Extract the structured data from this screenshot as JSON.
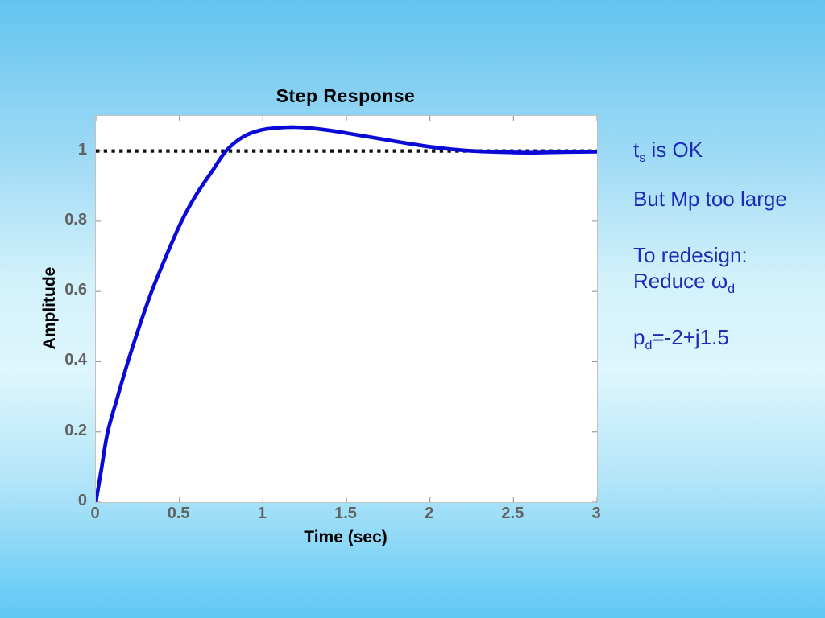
{
  "slide": {
    "background_colors": {
      "top": "#64c4ef",
      "middle": "#def6fd",
      "bottom": "#5fc8f5"
    }
  },
  "chart_data": {
    "type": "line",
    "title": "Step Response",
    "xlabel": "Time (sec)",
    "ylabel": "Amplitude",
    "xlim": [
      0,
      3
    ],
    "ylim": [
      0,
      1.1
    ],
    "grid": false,
    "x_ticks": [
      0,
      0.5,
      1,
      1.5,
      2,
      2.5,
      3
    ],
    "x_tick_labels": [
      "0",
      "0.5",
      "1",
      "1.5",
      "2",
      "2.5",
      "3"
    ],
    "y_ticks": [
      0,
      0.2,
      0.4,
      0.6,
      0.8,
      1
    ],
    "y_tick_labels": [
      "0",
      "0.2",
      "0.4",
      "0.6",
      "0.8",
      "1"
    ],
    "plot_bg": "#ffffff",
    "tick_color": "#9b9b9b",
    "tick_label_color": "#616161",
    "series": [
      {
        "name": "step-response",
        "color": "#0a0ad8",
        "width": 4.6,
        "x": [
          0,
          0.035,
          0.071,
          0.13,
          0.192,
          0.26,
          0.334,
          0.42,
          0.513,
          0.6,
          0.7,
          0.779,
          0.88,
          0.99,
          1.09,
          1.19,
          1.31,
          1.45,
          1.6,
          1.75,
          1.9,
          2.05,
          2.2,
          2.35,
          2.5,
          2.65,
          2.8,
          3.0
        ],
        "y": [
          0,
          0.1,
          0.2,
          0.3,
          0.4,
          0.5,
          0.6,
          0.7,
          0.8,
          0.875,
          0.945,
          1.0,
          1.04,
          1.06,
          1.066,
          1.068,
          1.064,
          1.055,
          1.043,
          1.031,
          1.019,
          1.009,
          1.002,
          0.998,
          0.996,
          0.9955,
          0.997,
          0.998
        ]
      }
    ],
    "reference_line": {
      "y": 1,
      "style": "dotted",
      "color": "#111111",
      "width": 4.3,
      "dash": "4.3 5.4"
    }
  },
  "annotations": {
    "color": "#1e2bb8",
    "lines": [
      {
        "parts": [
          {
            "t": "t"
          },
          {
            "sub": "s"
          },
          {
            "t": " is OK"
          }
        ]
      },
      {
        "parts": [
          {
            "t": "But Mp too large"
          }
        ]
      },
      {
        "parts": [
          {
            "t": "To redesign:"
          }
        ]
      },
      {
        "parts": [
          {
            "t": "Reduce "
          },
          {
            "t": "ω"
          },
          {
            "sub": "d"
          }
        ]
      },
      {
        "parts": [
          {
            "t": "p"
          },
          {
            "sub": "d"
          },
          {
            "t": "=-2+j1.5"
          }
        ]
      }
    ]
  }
}
